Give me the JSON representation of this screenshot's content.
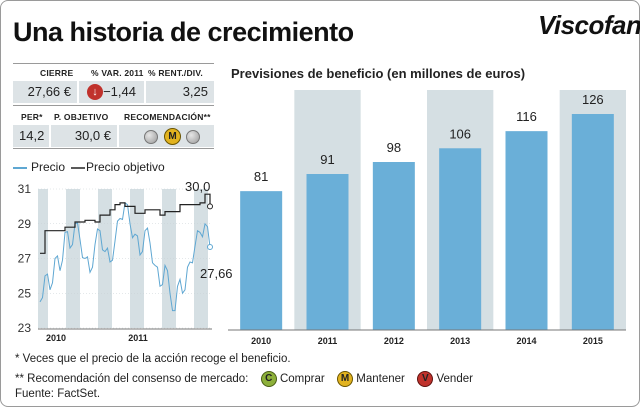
{
  "title": "Una historia de crecimiento",
  "logo": "Viscofan",
  "stats": {
    "headers": [
      "CIERRE",
      "% VAR. 2011",
      "% RENT./DIV."
    ],
    "values": [
      "27,66 €",
      "−1,44",
      "3,25"
    ],
    "headers2": [
      "PER*",
      "P. OBJETIVO",
      "RECOMENDACIÓN**"
    ],
    "values2": [
      "14,2",
      "30,0 €"
    ],
    "recommendation_icons": [
      "gray-circle-icon",
      "mantener-badge-icon",
      "gray-circle-icon"
    ],
    "recommendation_badge_letter": "M",
    "var_icon": "down-arrow-icon"
  },
  "colors": {
    "price_line": "#5fa7d2",
    "bar": "#6aafd8",
    "band": "#d5dfe3",
    "buy": "#8db03a",
    "hold": "#e2b31f",
    "sell": "#c0322c"
  },
  "chart_data": [
    {
      "type": "line",
      "series": [
        {
          "name": "Precio",
          "values": [
            24.5,
            26.0,
            25.2,
            27.0,
            26.3,
            28.5,
            27.6,
            29.0,
            28.1,
            27.0,
            26.2,
            27.8,
            28.6,
            27.4,
            26.8,
            28.0,
            29.3,
            30.2,
            29.0,
            28.4,
            27.2,
            28.6,
            27.9,
            26.6,
            25.4,
            26.6,
            25.0,
            24.0,
            25.8,
            25.2,
            26.8,
            27.7,
            28.5,
            29.0,
            27.66
          ]
        },
        {
          "name": "Precio objetivo",
          "values": [
            27.3,
            28.6,
            28.6,
            28.6,
            28.6,
            28.8,
            28.8,
            29.1,
            29.1,
            29.2,
            29.2,
            29.1,
            29.5,
            29.5,
            29.8,
            30.1,
            30.2,
            30.0,
            30.0,
            29.6,
            29.6,
            29.8,
            29.8,
            29.8,
            29.5,
            29.7,
            29.7,
            29.7,
            30.1,
            30.1,
            30.1,
            30.1,
            30.2,
            30.7,
            30.0
          ]
        }
      ],
      "ylim": [
        23,
        31
      ],
      "yticks": [
        23,
        25,
        27,
        29,
        31
      ],
      "xlabels": [
        "2010",
        "2011"
      ],
      "end_labels": [
        "30,0",
        "27,66"
      ],
      "legend": [
        "Precio",
        "Precio objetivo"
      ]
    },
    {
      "type": "bar",
      "title": "Previsiones de beneficio (en millones de euros)",
      "categories": [
        "2010",
        "2011",
        "2012",
        "2013",
        "2014",
        "2015"
      ],
      "values": [
        81,
        91,
        98,
        106,
        116,
        126
      ],
      "value_labels": [
        "81",
        "91",
        "98",
        "106",
        "116",
        "126"
      ],
      "ylim": [
        0,
        140
      ]
    }
  ],
  "footnotes": {
    "note1": "* Veces que el precio de la acción recoge el beneficio.",
    "note2": "** Recomendación del consenso de mercado:",
    "buy_letter": "C",
    "buy_label": "Comprar",
    "hold_letter": "M",
    "hold_label": "Mantener",
    "sell_letter": "V",
    "sell_label": "Vender",
    "source": "Fuente: FactSet."
  }
}
